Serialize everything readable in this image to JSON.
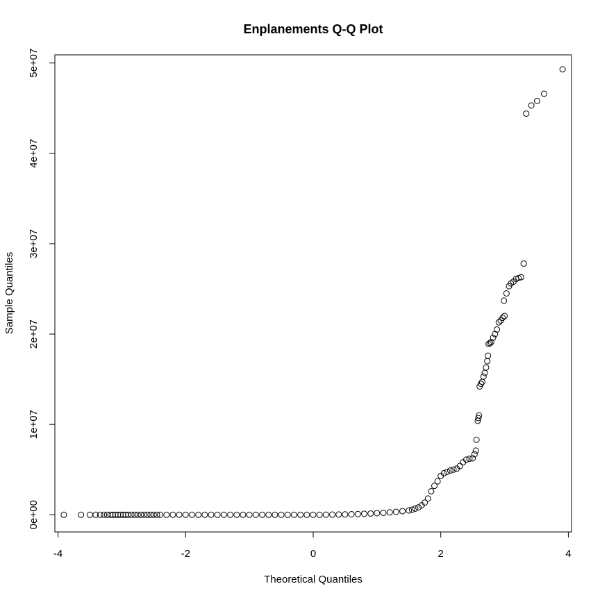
{
  "chart_data": {
    "type": "scatter",
    "title": "Enplanements Q-Q Plot",
    "xlabel": "Theoretical Quantiles",
    "ylabel": "Sample Quantiles",
    "xlim": [
      -4.05,
      4.05
    ],
    "ylim": [
      -1900000,
      50900000
    ],
    "xticks": [
      -4,
      -2,
      0,
      2,
      4
    ],
    "xtick_labels": [
      "-4",
      "-2",
      "0",
      "2",
      "4"
    ],
    "yticks": [
      0,
      10000000,
      20000000,
      30000000,
      40000000,
      50000000
    ],
    "ytick_labels": [
      "0e+00",
      "1e+07",
      "2e+07",
      "3e+07",
      "4e+07",
      "5e+07"
    ],
    "grid": false,
    "points": [
      [
        -3.91,
        0
      ],
      [
        -3.64,
        0
      ],
      [
        -3.5,
        0
      ],
      [
        -3.41,
        0
      ],
      [
        -3.34,
        0
      ],
      [
        -3.28,
        0
      ],
      [
        -3.23,
        0
      ],
      [
        -3.18,
        0
      ],
      [
        -3.14,
        0
      ],
      [
        -3.1,
        0
      ],
      [
        -3.06,
        0
      ],
      [
        -3.02,
        0
      ],
      [
        -2.98,
        0
      ],
      [
        -2.94,
        0
      ],
      [
        -2.9,
        0
      ],
      [
        -2.85,
        0
      ],
      [
        -2.8,
        0
      ],
      [
        -2.75,
        0
      ],
      [
        -2.7,
        0
      ],
      [
        -2.65,
        0
      ],
      [
        -2.6,
        0
      ],
      [
        -2.55,
        0
      ],
      [
        -2.5,
        0
      ],
      [
        -2.45,
        0
      ],
      [
        -2.4,
        0
      ],
      [
        -2.3,
        0
      ],
      [
        -2.2,
        0
      ],
      [
        -2.1,
        0
      ],
      [
        -2.0,
        0
      ],
      [
        -1.9,
        0
      ],
      [
        -1.8,
        0
      ],
      [
        -1.7,
        0
      ],
      [
        -1.6,
        0
      ],
      [
        -1.5,
        0
      ],
      [
        -1.4,
        0
      ],
      [
        -1.3,
        0
      ],
      [
        -1.2,
        0
      ],
      [
        -1.1,
        0
      ],
      [
        -1.0,
        0
      ],
      [
        -0.9,
        0
      ],
      [
        -0.8,
        0
      ],
      [
        -0.7,
        0
      ],
      [
        -0.6,
        0
      ],
      [
        -0.5,
        0
      ],
      [
        -0.4,
        0
      ],
      [
        -0.3,
        0
      ],
      [
        -0.2,
        0
      ],
      [
        -0.1,
        0
      ],
      [
        0.0,
        0
      ],
      [
        0.1,
        0
      ],
      [
        0.2,
        10000
      ],
      [
        0.3,
        20000
      ],
      [
        0.4,
        30000
      ],
      [
        0.5,
        40000
      ],
      [
        0.6,
        60000
      ],
      [
        0.7,
        80000
      ],
      [
        0.8,
        110000
      ],
      [
        0.9,
        140000
      ],
      [
        1.0,
        180000
      ],
      [
        1.1,
        220000
      ],
      [
        1.2,
        270000
      ],
      [
        1.3,
        330000
      ],
      [
        1.4,
        400000
      ],
      [
        1.5,
        480000
      ],
      [
        1.55,
        560000
      ],
      [
        1.6,
        680000
      ],
      [
        1.65,
        820000
      ],
      [
        1.7,
        1050000
      ],
      [
        1.75,
        1350000
      ],
      [
        1.8,
        1800000
      ],
      [
        1.85,
        2600000
      ],
      [
        1.9,
        3200000
      ],
      [
        1.95,
        3700000
      ],
      [
        2.0,
        4300000
      ],
      [
        2.05,
        4600000
      ],
      [
        2.1,
        4750000
      ],
      [
        2.15,
        4900000
      ],
      [
        2.2,
        5000000
      ],
      [
        2.25,
        5100000
      ],
      [
        2.3,
        5400000
      ],
      [
        2.35,
        5800000
      ],
      [
        2.4,
        6100000
      ],
      [
        2.45,
        6200000
      ],
      [
        2.5,
        6250000
      ],
      [
        2.53,
        6700000
      ],
      [
        2.55,
        7100000
      ],
      [
        2.56,
        8300000
      ],
      [
        2.58,
        10400000
      ],
      [
        2.59,
        10700000
      ],
      [
        2.6,
        11000000
      ],
      [
        2.61,
        14200000
      ],
      [
        2.63,
        14500000
      ],
      [
        2.65,
        14700000
      ],
      [
        2.67,
        15300000
      ],
      [
        2.69,
        15700000
      ],
      [
        2.71,
        16300000
      ],
      [
        2.73,
        17000000
      ],
      [
        2.74,
        17600000
      ],
      [
        2.75,
        18900000
      ],
      [
        2.77,
        19000000
      ],
      [
        2.79,
        19100000
      ],
      [
        2.82,
        19600000
      ],
      [
        2.85,
        20000000
      ],
      [
        2.88,
        20500000
      ],
      [
        2.91,
        21300000
      ],
      [
        2.94,
        21500000
      ],
      [
        2.97,
        21800000
      ],
      [
        3.0,
        22000000
      ],
      [
        2.99,
        23700000
      ],
      [
        3.03,
        24500000
      ],
      [
        3.07,
        25300000
      ],
      [
        3.1,
        25600000
      ],
      [
        3.14,
        25800000
      ],
      [
        3.18,
        26100000
      ],
      [
        3.22,
        26200000
      ],
      [
        3.26,
        26300000
      ],
      [
        3.3,
        27800000
      ],
      [
        3.34,
        44400000
      ],
      [
        3.42,
        45300000
      ],
      [
        3.51,
        45800000
      ],
      [
        3.62,
        46600000
      ],
      [
        3.91,
        49300000
      ]
    ]
  }
}
